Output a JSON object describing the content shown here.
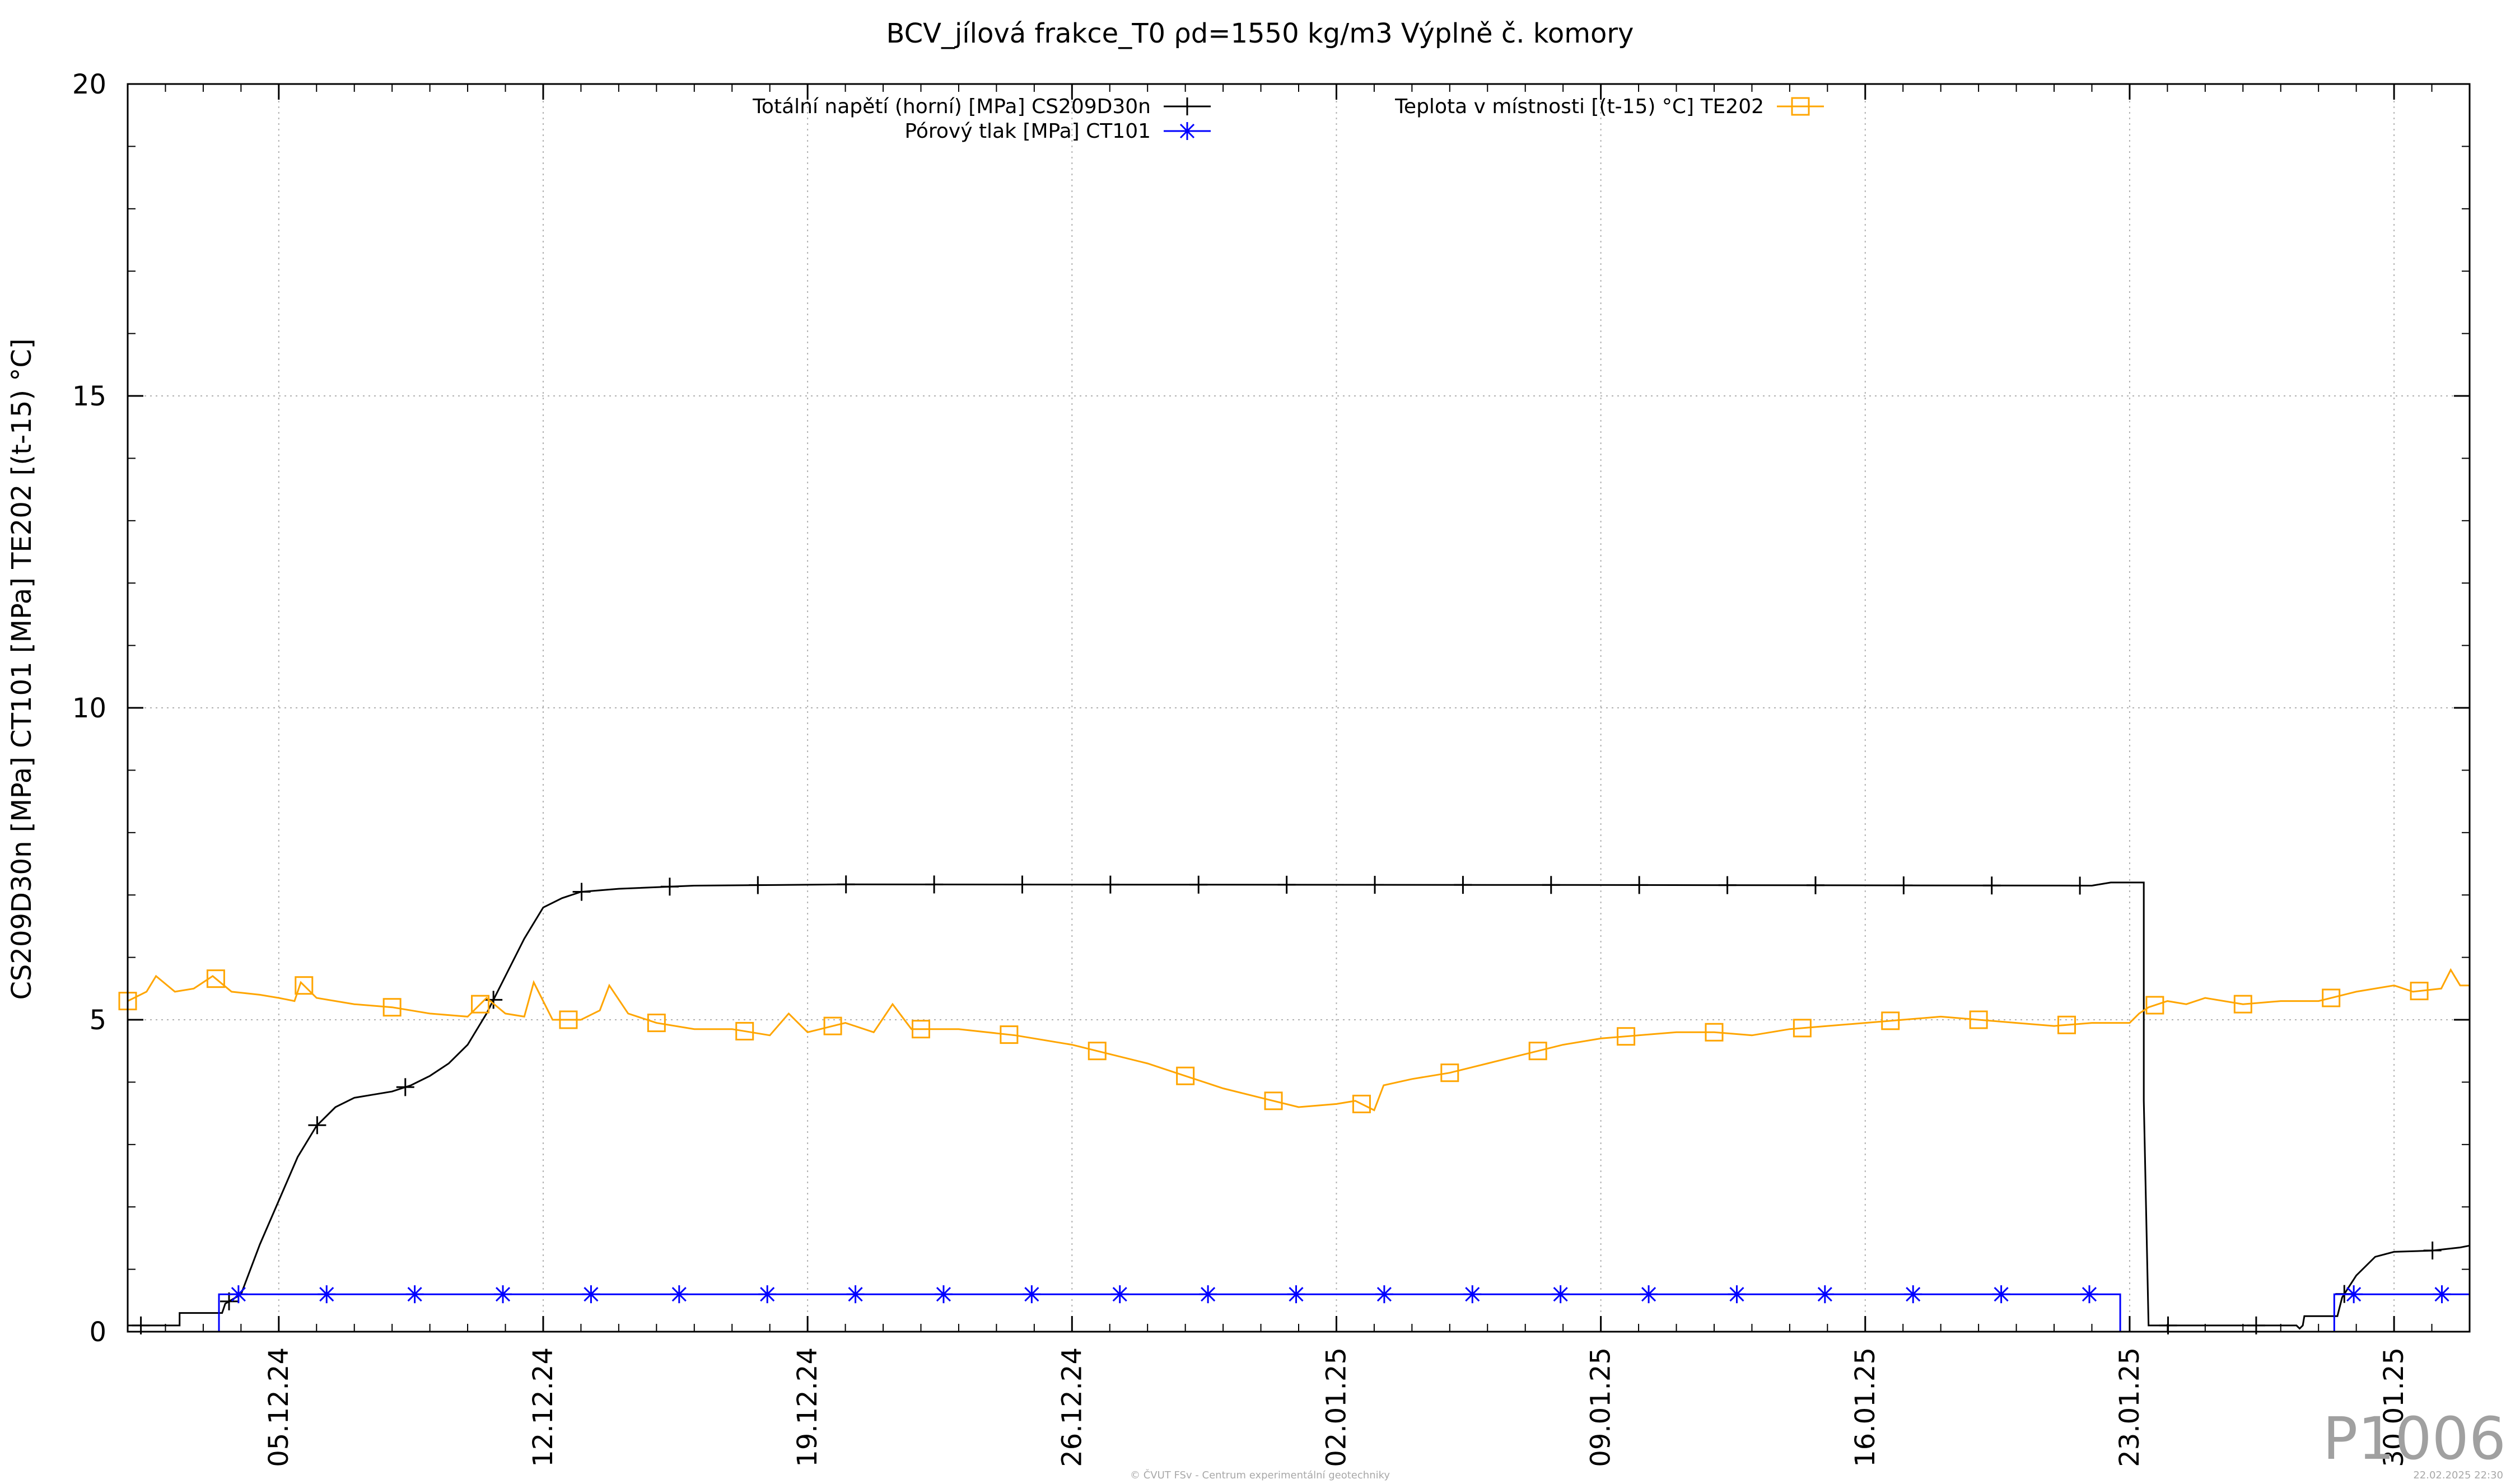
{
  "chart_data": {
    "type": "line",
    "title": "BCV_jílová frakce_T0 ρd=1550 kg/m3 Výplně č. komory",
    "ylabel": "CS209D30n [MPa] CT101 [MPa] TE202 [(t-15) °C]",
    "xlabel": "",
    "ylim": [
      0,
      20
    ],
    "yticks": [
      0,
      5,
      10,
      15,
      20
    ],
    "xlim": [
      "2024-12-01",
      "2025-02-01"
    ],
    "xticks": [
      "05.12.24",
      "12.12.24",
      "19.12.24",
      "26.12.24",
      "02.01.25",
      "09.01.25",
      "16.01.25",
      "23.01.25",
      "30.01.25"
    ],
    "grid": true,
    "legend_position": "top",
    "series": [
      {
        "name": "Totální napětí (horní) [MPa] CS209D30n",
        "color": "#000000",
        "marker": "plus",
        "points": [
          [
            "2024-12-01 00:00",
            0.1
          ],
          [
            "2024-12-02 09:00",
            0.1
          ],
          [
            "2024-12-02 09:00",
            0.3
          ],
          [
            "2024-12-03 12:00",
            0.3
          ],
          [
            "2024-12-03 14:00",
            0.45
          ],
          [
            "2024-12-04 00:00",
            0.6
          ],
          [
            "2024-12-04 12:00",
            1.4
          ],
          [
            "2024-12-05 00:00",
            2.1
          ],
          [
            "2024-12-05 12:00",
            2.8
          ],
          [
            "2024-12-06 00:00",
            3.3
          ],
          [
            "2024-12-06 12:00",
            3.6
          ],
          [
            "2024-12-07 00:00",
            3.75
          ],
          [
            "2024-12-07 12:00",
            3.8
          ],
          [
            "2024-12-08 00:00",
            3.85
          ],
          [
            "2024-12-08 12:00",
            3.95
          ],
          [
            "2024-12-09 00:00",
            4.1
          ],
          [
            "2024-12-09 12:00",
            4.3
          ],
          [
            "2024-12-10 00:00",
            4.6
          ],
          [
            "2024-12-10 12:00",
            5.1
          ],
          [
            "2024-12-11 00:00",
            5.7
          ],
          [
            "2024-12-11 12:00",
            6.3
          ],
          [
            "2024-12-12 00:00",
            6.8
          ],
          [
            "2024-12-12 12:00",
            6.95
          ],
          [
            "2024-12-13 00:00",
            7.05
          ],
          [
            "2024-12-14 00:00",
            7.1
          ],
          [
            "2024-12-16 00:00",
            7.15
          ],
          [
            "2024-12-20 00:00",
            7.17
          ],
          [
            "2025-01-10 00:00",
            7.16
          ],
          [
            "2025-01-22 00:00",
            7.15
          ],
          [
            "2025-01-22 12:00",
            7.2
          ],
          [
            "2025-01-23 09:00",
            7.2
          ],
          [
            "2025-01-23 09:00",
            3.7
          ],
          [
            "2025-01-23 12:00",
            0.1
          ],
          [
            "2025-01-27 10:00",
            0.1
          ],
          [
            "2025-01-27 12:00",
            0.05
          ],
          [
            "2025-01-27 14:00",
            0.1
          ],
          [
            "2025-01-27 15:00",
            0.25
          ],
          [
            "2025-01-28 12:00",
            0.25
          ],
          [
            "2025-01-28 15:00",
            0.55
          ],
          [
            "2025-01-29 00:00",
            0.9
          ],
          [
            "2025-01-29 12:00",
            1.2
          ],
          [
            "2025-01-30 00:00",
            1.28
          ],
          [
            "2025-01-31 00:00",
            1.3
          ],
          [
            "2025-01-31 18:00",
            1.35
          ],
          [
            "2025-02-01 00:00",
            1.38
          ]
        ]
      },
      {
        "name": "Pórový tlak [MPa] CT101",
        "color": "#0000ff",
        "marker": "star",
        "points": [
          [
            "2024-12-03 10:00",
            0.0
          ],
          [
            "2024-12-03 10:00",
            0.6
          ],
          [
            "2025-01-22 18:00",
            0.6
          ],
          [
            "2025-01-22 18:00",
            0.0
          ],
          [
            "2025-01-28 10:00",
            0.0
          ],
          [
            "2025-01-28 10:00",
            0.6
          ],
          [
            "2025-02-01 00:00",
            0.6
          ]
        ]
      },
      {
        "name": "Teplota v místnosti [(t-15) °C] TE202",
        "color": "#ffa500",
        "marker": "square",
        "points": [
          [
            "2024-12-01 00:00",
            5.3
          ],
          [
            "2024-12-01 12:00",
            5.45
          ],
          [
            "2024-12-01 18:00",
            5.7
          ],
          [
            "2024-12-02 06:00",
            5.45
          ],
          [
            "2024-12-02 18:00",
            5.5
          ],
          [
            "2024-12-03 06:00",
            5.7
          ],
          [
            "2024-12-03 18:00",
            5.45
          ],
          [
            "2024-12-04 12:00",
            5.4
          ],
          [
            "2024-12-05 00:00",
            5.35
          ],
          [
            "2024-12-05 10:00",
            5.3
          ],
          [
            "2024-12-05 14:00",
            5.6
          ],
          [
            "2024-12-06 00:00",
            5.35
          ],
          [
            "2024-12-07 00:00",
            5.25
          ],
          [
            "2024-12-08 00:00",
            5.2
          ],
          [
            "2024-12-09 00:00",
            5.1
          ],
          [
            "2024-12-10 00:00",
            5.05
          ],
          [
            "2024-12-10 12:00",
            5.35
          ],
          [
            "2024-12-11 00:00",
            5.1
          ],
          [
            "2024-12-11 12:00",
            5.05
          ],
          [
            "2024-12-11 18:00",
            5.6
          ],
          [
            "2024-12-12 06:00",
            5.0
          ],
          [
            "2024-12-13 00:00",
            5.0
          ],
          [
            "2024-12-13 12:00",
            5.15
          ],
          [
            "2024-12-13 18:00",
            5.55
          ],
          [
            "2024-12-14 06:00",
            5.1
          ],
          [
            "2024-12-15 00:00",
            4.95
          ],
          [
            "2024-12-16 00:00",
            4.85
          ],
          [
            "2024-12-17 00:00",
            4.85
          ],
          [
            "2024-12-18 00:00",
            4.75
          ],
          [
            "2024-12-18 12:00",
            5.1
          ],
          [
            "2024-12-19 00:00",
            4.8
          ],
          [
            "2024-12-20 00:00",
            4.95
          ],
          [
            "2024-12-20 18:00",
            4.8
          ],
          [
            "2024-12-21 06:00",
            5.25
          ],
          [
            "2024-12-21 18:00",
            4.85
          ],
          [
            "2024-12-23 00:00",
            4.85
          ],
          [
            "2024-12-24 12:00",
            4.75
          ],
          [
            "2024-12-26 00:00",
            4.6
          ],
          [
            "2024-12-27 00:00",
            4.45
          ],
          [
            "2024-12-28 00:00",
            4.3
          ],
          [
            "2024-12-29 00:00",
            4.1
          ],
          [
            "2024-12-30 00:00",
            3.9
          ],
          [
            "2024-12-31 00:00",
            3.75
          ],
          [
            "2025-01-01 00:00",
            3.6
          ],
          [
            "2025-01-02 00:00",
            3.65
          ],
          [
            "2025-01-02 12:00",
            3.7
          ],
          [
            "2025-01-03 00:00",
            3.55
          ],
          [
            "2025-01-03 06:00",
            3.95
          ],
          [
            "2025-01-04 00:00",
            4.05
          ],
          [
            "2025-01-05 00:00",
            4.15
          ],
          [
            "2025-01-06 00:00",
            4.3
          ],
          [
            "2025-01-07 00:00",
            4.45
          ],
          [
            "2025-01-08 00:00",
            4.6
          ],
          [
            "2025-01-09 00:00",
            4.7
          ],
          [
            "2025-01-10 00:00",
            4.75
          ],
          [
            "2025-01-11 00:00",
            4.8
          ],
          [
            "2025-01-12 00:00",
            4.8
          ],
          [
            "2025-01-13 00:00",
            4.75
          ],
          [
            "2025-01-14 00:00",
            4.85
          ],
          [
            "2025-01-15 00:00",
            4.9
          ],
          [
            "2025-01-16 00:00",
            4.95
          ],
          [
            "2025-01-17 00:00",
            5.0
          ],
          [
            "2025-01-18 00:00",
            5.05
          ],
          [
            "2025-01-19 00:00",
            5.0
          ],
          [
            "2025-01-20 00:00",
            4.95
          ],
          [
            "2025-01-21 00:00",
            4.9
          ],
          [
            "2025-01-22 00:00",
            4.95
          ],
          [
            "2025-01-23 00:00",
            4.95
          ],
          [
            "2025-01-23 06:00",
            5.1
          ],
          [
            "2025-01-23 12:00",
            5.2
          ],
          [
            "2025-01-24 00:00",
            5.3
          ],
          [
            "2025-01-24 12:00",
            5.25
          ],
          [
            "2025-01-25 00:00",
            5.35
          ],
          [
            "2025-01-26 00:00",
            5.25
          ],
          [
            "2025-01-27 00:00",
            5.3
          ],
          [
            "2025-01-28 00:00",
            5.3
          ],
          [
            "2025-01-29 00:00",
            5.45
          ],
          [
            "2025-01-30 00:00",
            5.55
          ],
          [
            "2025-01-30 12:00",
            5.45
          ],
          [
            "2025-01-31 06:00",
            5.5
          ],
          [
            "2025-01-31 12:00",
            5.8
          ],
          [
            "2025-01-31 18:00",
            5.55
          ],
          [
            "2025-02-01 00:00",
            5.55
          ]
        ]
      }
    ]
  },
  "corner_id": "P1006",
  "footer_left": "© ČVUT FSv - Centrum experimentální geotechniky",
  "footer_right": "22.02.2025 22:30"
}
